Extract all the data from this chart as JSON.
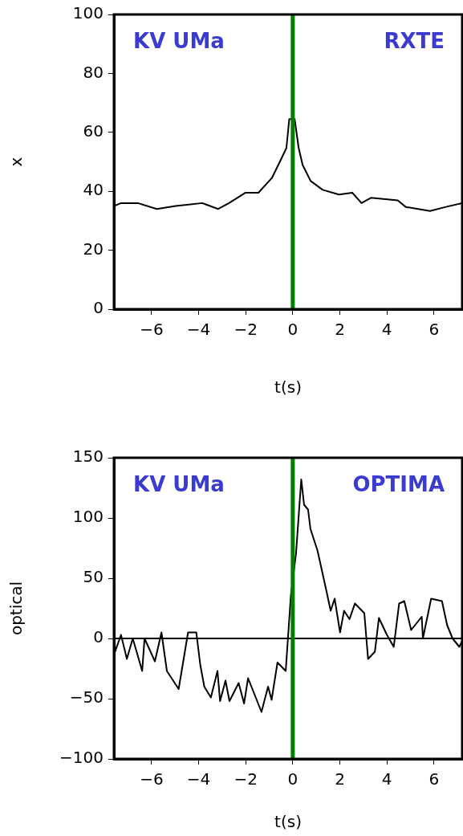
{
  "chart_data": [
    {
      "type": "line",
      "xlabel": "t(s)",
      "ylabel": "x",
      "annotations": [
        "KV UMa",
        "RXTE"
      ],
      "xlim": [
        -7.6,
        7.2
      ],
      "xticks": [
        -6,
        -4,
        -2,
        0,
        2,
        4,
        6
      ],
      "ylim": [
        0,
        100
      ],
      "yticks": [
        0,
        20,
        40,
        60,
        80,
        100
      ],
      "grid": false,
      "legend": false,
      "marker": "none",
      "line_style": "solid",
      "series": [
        {
          "color": "#000000",
          "x": [
            -7.6,
            -7.3,
            -6.58,
            -5.78,
            -4.98,
            -3.85,
            -3.17,
            -2.71,
            -2.02,
            -1.46,
            -0.89,
            -0.55,
            -0.27,
            -0.15,
            0.08,
            0.25,
            0.42,
            0.76,
            1.27,
            1.96,
            2.53,
            2.92,
            3.32,
            4.46,
            4.8,
            5.83,
            6.51,
            7.2
          ],
          "values": [
            35,
            36,
            36,
            34,
            35,
            36,
            34,
            36,
            39.5,
            39.5,
            44.5,
            50,
            54.7,
            64.5,
            64.5,
            54.7,
            48.9,
            43.5,
            40.5,
            38.9,
            39.5,
            36,
            37.8,
            36.9,
            34.7,
            33.3,
            34.7,
            36
          ]
        }
      ],
      "ref_lines": [
        {
          "axis": "x",
          "value": 0,
          "color": "#008000"
        }
      ]
    },
    {
      "type": "line",
      "xlabel": "t(s)",
      "ylabel": "optical",
      "annotations": [
        "KV UMa",
        "OPTIMA"
      ],
      "xlim": [
        -7.6,
        7.2
      ],
      "xticks": [
        -6,
        -4,
        -2,
        0,
        2,
        4,
        6
      ],
      "ylim": [
        -100,
        150
      ],
      "yticks": [
        -100,
        -50,
        0,
        50,
        100,
        150
      ],
      "grid": false,
      "legend": false,
      "marker": "none",
      "line_style": "solid",
      "series": [
        {
          "color": "#000000",
          "x": [
            -7.6,
            -7.55,
            -7.3,
            -7.05,
            -6.8,
            -6.4,
            -6.3,
            -5.86,
            -5.58,
            -5.35,
            -4.85,
            -4.45,
            -4.1,
            -3.93,
            -3.76,
            -3.48,
            -3.2,
            -3.09,
            -2.86,
            -2.69,
            -2.3,
            -2.07,
            -1.9,
            -1.33,
            -1.05,
            -0.9,
            -0.65,
            -0.3,
            -0.08,
            0.14,
            0.36,
            0.48,
            0.65,
            0.75,
            1.05,
            1.39,
            1.61,
            1.78,
            2.01,
            2.18,
            2.41,
            2.64,
            3.04,
            3.2,
            3.49,
            3.66,
            4.0,
            4.29,
            4.52,
            4.74,
            5.03,
            5.48,
            5.53,
            5.88,
            6.34,
            6.56,
            6.79,
            7.08,
            7.2
          ],
          "values": [
            15,
            -11,
            3,
            -17,
            0,
            -27,
            0,
            -19,
            5,
            -27,
            -42,
            5,
            5,
            -22,
            -40,
            -49,
            -27,
            -52,
            -35,
            -52,
            -37,
            -54,
            -33,
            -61,
            -40,
            -51,
            -20,
            -27,
            36,
            71,
            132,
            111,
            107,
            91,
            73,
            43,
            23,
            33,
            5,
            23,
            16,
            29,
            21,
            -17,
            -11,
            17,
            3,
            -7,
            29,
            31,
            7,
            18,
            0,
            33,
            31,
            11,
            0,
            -7,
            -2
          ]
        }
      ],
      "ref_lines": [
        {
          "axis": "y",
          "value": 0,
          "color": "#000000"
        },
        {
          "axis": "x",
          "value": 0,
          "color": "#008000"
        }
      ]
    }
  ]
}
